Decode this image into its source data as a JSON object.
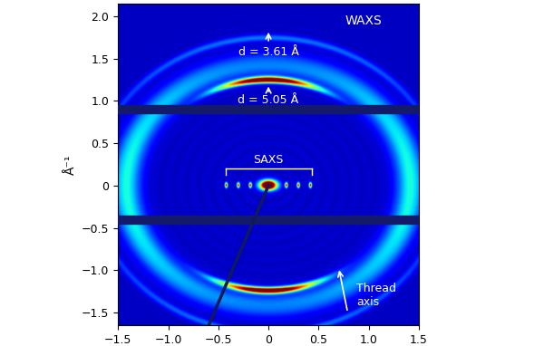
{
  "chart_data": {
    "type": "image",
    "ylabel": "Å⁻¹",
    "xlim": [
      -1.5,
      1.5
    ],
    "ylim": [
      -1.65,
      2.15
    ],
    "xticks": [
      {
        "value": -1.5,
        "label": "−1.5"
      },
      {
        "value": -1.0,
        "label": "−1.0"
      },
      {
        "value": -0.5,
        "label": "−0.5"
      },
      0,
      0.5,
      {
        "value": 1.0,
        "label": "1.0"
      },
      1.5
    ],
    "yticks": [
      {
        "value": -1.5,
        "label": "−1.5"
      },
      {
        "value": -1.0,
        "label": "−1.0"
      },
      {
        "value": -0.5,
        "label": "−0.5"
      },
      0,
      0.5,
      {
        "value": 1.0,
        "label": "1.0"
      },
      1.5,
      {
        "value": 2.0,
        "label": "2.0"
      }
    ],
    "region_labels": {
      "waxs": "WAXS",
      "saxs": "SAXS",
      "thread_axis": "Thread\naxis"
    },
    "reflections": [
      {
        "text": "d = 5.05 Å",
        "d": 5.05
      },
      {
        "text": "d = 3.61 Å",
        "d": 3.61
      }
    ],
    "saxs_peaks_x": [
      -0.42,
      -0.3,
      -0.18,
      0.18,
      0.3,
      0.42
    ],
    "saxs_range": [
      -0.43,
      0.43
    ],
    "detector_gaps_y": [
      0.9,
      -0.4
    ]
  }
}
